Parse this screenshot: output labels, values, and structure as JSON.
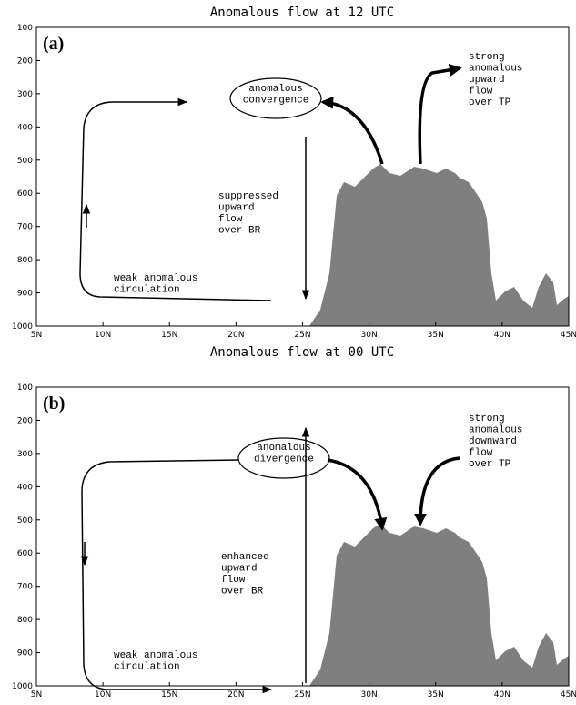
{
  "panels": [
    {
      "title": "Anomalous flow at 12 UTC",
      "label": "(a)",
      "yticks": [
        "100",
        "200",
        "300",
        "400",
        "500",
        "600",
        "700",
        "800",
        "900",
        "1000"
      ],
      "xticks": [
        "5N",
        "10N",
        "15N",
        "20N",
        "25N",
        "30N",
        "35N",
        "40N",
        "45N"
      ],
      "annotations": [
        {
          "lines": [
            "anomalous",
            "convergence"
          ]
        },
        {
          "lines": [
            "strong",
            "anomalous",
            "upward",
            "flow",
            "over TP"
          ]
        },
        {
          "lines": [
            "suppressed",
            "upward",
            "flow",
            "over BR"
          ]
        },
        {
          "lines": [
            "weak anomalous",
            "circulation"
          ]
        }
      ]
    },
    {
      "title": "Anomalous flow at 00 UTC",
      "label": "(b)",
      "yticks": [
        "100",
        "200",
        "300",
        "400",
        "500",
        "600",
        "700",
        "800",
        "900",
        "1000"
      ],
      "xticks": [
        "5N",
        "10N",
        "15N",
        "20N",
        "25N",
        "30N",
        "35N",
        "40N",
        "45N"
      ],
      "annotations": [
        {
          "lines": [
            "anomalous",
            "divergence"
          ]
        },
        {
          "lines": [
            "strong",
            "anomalous",
            "downward",
            "flow",
            "over TP"
          ]
        },
        {
          "lines": [
            "enhanced",
            "upward",
            "flow",
            "over BR"
          ]
        },
        {
          "lines": [
            "weak anomalous",
            "circulation"
          ]
        }
      ]
    }
  ]
}
